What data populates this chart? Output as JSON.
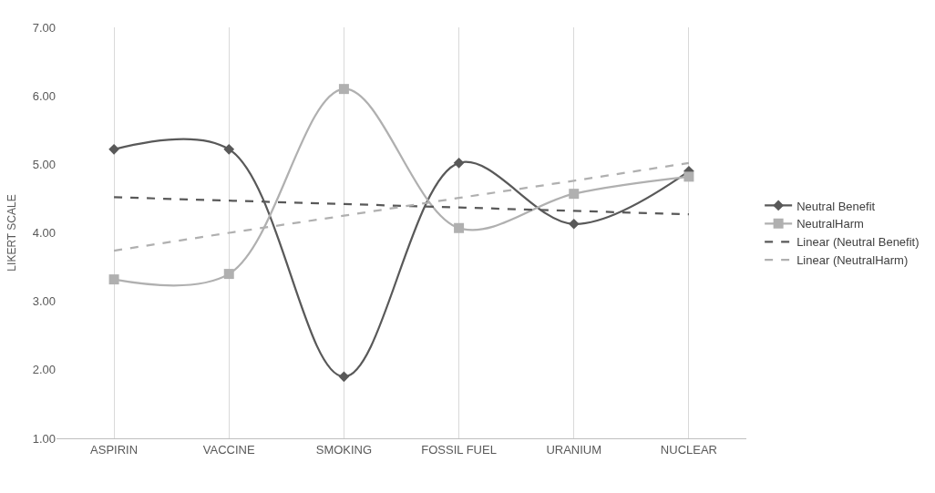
{
  "chart_data": {
    "type": "line",
    "ylabel": "LIKERT SCALE",
    "categories": [
      "ASPIRIN",
      "VACCINE",
      "SMOKING",
      "FOSSIL FUEL",
      "URANIUM",
      "NUCLEAR"
    ],
    "series": [
      {
        "name": "Neutral Benefit",
        "color": "#595959",
        "marker": "diamond",
        "line_style": "solid",
        "values": [
          5.22,
          5.22,
          1.9,
          5.02,
          4.13,
          4.9
        ]
      },
      {
        "name": "NeutralHarm",
        "color": "#b0b0b0",
        "marker": "square",
        "line_style": "solid",
        "values": [
          3.32,
          3.4,
          6.1,
          4.07,
          4.57,
          4.82
        ]
      },
      {
        "name": "Linear (Neutral Benefit)",
        "color": "#595959",
        "marker": "none",
        "line_style": "dashed",
        "values": [
          4.52,
          4.47,
          4.42,
          4.37,
          4.32,
          4.27
        ]
      },
      {
        "name": "Linear (NeutralHarm)",
        "color": "#b0b0b0",
        "marker": "none",
        "line_style": "dashed",
        "values": [
          3.74,
          4.0,
          4.25,
          4.51,
          4.76,
          5.02
        ]
      }
    ],
    "ylim": [
      1,
      7
    ],
    "yticks": [
      {
        "value": 1,
        "label": "1.00"
      },
      {
        "value": 2,
        "label": "2.00"
      },
      {
        "value": 3,
        "label": "3.00"
      },
      {
        "value": 4,
        "label": "4.00"
      },
      {
        "value": 5,
        "label": "5.00"
      },
      {
        "value": 6,
        "label": "6.00"
      },
      {
        "value": 7,
        "label": "7.00"
      }
    ],
    "grid": "x",
    "legend": "right"
  }
}
